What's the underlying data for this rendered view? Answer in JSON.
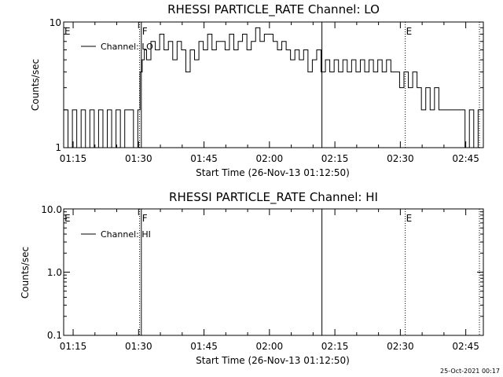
{
  "plots": [
    {
      "title": "RHESSI PARTICLE_RATE Channel: LO",
      "ylabel": "Counts/sec",
      "xlabel": "Start Time (26-Nov-13 01:12:50)",
      "legend": "Channel: LO",
      "yticks": [
        "10",
        "1"
      ],
      "xticks": [
        "01:15",
        "01:30",
        "01:45",
        "02:00",
        "02:15",
        "02:30",
        "02:45"
      ],
      "markers": [
        {
          "label": "E",
          "time_min": 0
        },
        {
          "label": "F",
          "time_min": 17.8
        },
        {
          "label": "E",
          "time_min": 78.3
        }
      ]
    },
    {
      "title": "RHESSI PARTICLE_RATE Channel: HI",
      "ylabel": "Counts/sec",
      "xlabel": "Start Time (26-Nov-13 01:12:50)",
      "legend": "Channel: HI",
      "yticks": [
        "10.0",
        "1.0",
        "0.1"
      ],
      "xticks": [
        "01:15",
        "01:30",
        "01:45",
        "02:00",
        "02:15",
        "02:30",
        "02:45"
      ],
      "markers": [
        {
          "label": "E",
          "time_min": 0
        },
        {
          "label": "F",
          "time_min": 17.8
        },
        {
          "label": "E",
          "time_min": 78.3
        }
      ]
    }
  ],
  "footer": "25-Oct-2021 00:17",
  "chart_data": [
    {
      "type": "line",
      "title": "RHESSI PARTICLE_RATE Channel: LO",
      "xlabel": "Start Time (26-Nov-13 01:12:50)",
      "ylabel": "Counts/sec",
      "yscale": "log",
      "ylim": [
        1,
        10
      ],
      "xlim_minutes_after_start": [
        0,
        96.2
      ],
      "x_unit": "minutes after 01:12:50",
      "vertical_lines": [
        {
          "x": 17.4,
          "style": "dotted"
        },
        {
          "x": 17.8,
          "style": "solid"
        },
        {
          "x": 59.2,
          "style": "solid"
        },
        {
          "x": 78.3,
          "style": "dotted"
        },
        {
          "x": 95.3,
          "style": "dotted"
        }
      ],
      "series": [
        {
          "name": "Channel: LO",
          "x": [
            0,
            1,
            2,
            3,
            4,
            5,
            6,
            7,
            8,
            9,
            10,
            11,
            12,
            13,
            14,
            15,
            16,
            17,
            17.5,
            18,
            18.5,
            19,
            20,
            21,
            22,
            23,
            24,
            25,
            26,
            27,
            28,
            29,
            30,
            31,
            32,
            33,
            34,
            35,
            36,
            37,
            38,
            39,
            40,
            41,
            42,
            43,
            44,
            45,
            46,
            47,
            48,
            49,
            50,
            51,
            52,
            53,
            54,
            55,
            56,
            57,
            58,
            59,
            60,
            61,
            62,
            63,
            64,
            65,
            66,
            67,
            68,
            69,
            70,
            71,
            72,
            73,
            74,
            75,
            76,
            77,
            78,
            79,
            80,
            81,
            82,
            83,
            84,
            85,
            86,
            87,
            88,
            89,
            90,
            91,
            92,
            93,
            94,
            95
          ],
          "values": [
            2,
            1,
            2,
            1,
            2,
            1,
            2,
            1,
            2,
            1,
            2,
            1,
            2,
            1,
            2,
            2,
            1,
            2,
            4,
            5,
            6,
            5,
            7,
            6,
            8,
            6,
            7,
            5,
            7,
            6,
            4,
            6,
            5,
            7,
            6,
            8,
            6,
            7,
            7,
            6,
            8,
            6,
            7,
            8,
            6,
            7,
            9,
            7,
            8,
            8,
            7,
            6,
            7,
            6,
            5,
            6,
            5,
            6,
            4,
            5,
            6,
            4,
            5,
            4,
            5,
            4,
            5,
            4,
            5,
            4,
            5,
            4,
            5,
            4,
            5,
            4,
            5,
            4,
            4,
            3,
            4,
            3,
            4,
            3,
            2,
            3,
            2,
            3,
            2,
            2,
            2,
            2,
            2,
            2,
            1,
            2,
            1,
            2
          ]
        }
      ]
    },
    {
      "type": "line",
      "title": "RHESSI PARTICLE_RATE Channel: HI",
      "xlabel": "Start Time (26-Nov-13 01:12:50)",
      "ylabel": "Counts/sec",
      "yscale": "log",
      "ylim": [
        0.1,
        10
      ],
      "xlim_minutes_after_start": [
        0,
        96.2
      ],
      "x_unit": "minutes after 01:12:50",
      "vertical_lines": [
        {
          "x": 17.4,
          "style": "dotted"
        },
        {
          "x": 17.8,
          "style": "solid"
        },
        {
          "x": 59.2,
          "style": "solid"
        },
        {
          "x": 78.3,
          "style": "dotted"
        },
        {
          "x": 95.3,
          "style": "dotted"
        }
      ],
      "series": [
        {
          "name": "Channel: HI",
          "x": [],
          "values": []
        }
      ]
    }
  ]
}
